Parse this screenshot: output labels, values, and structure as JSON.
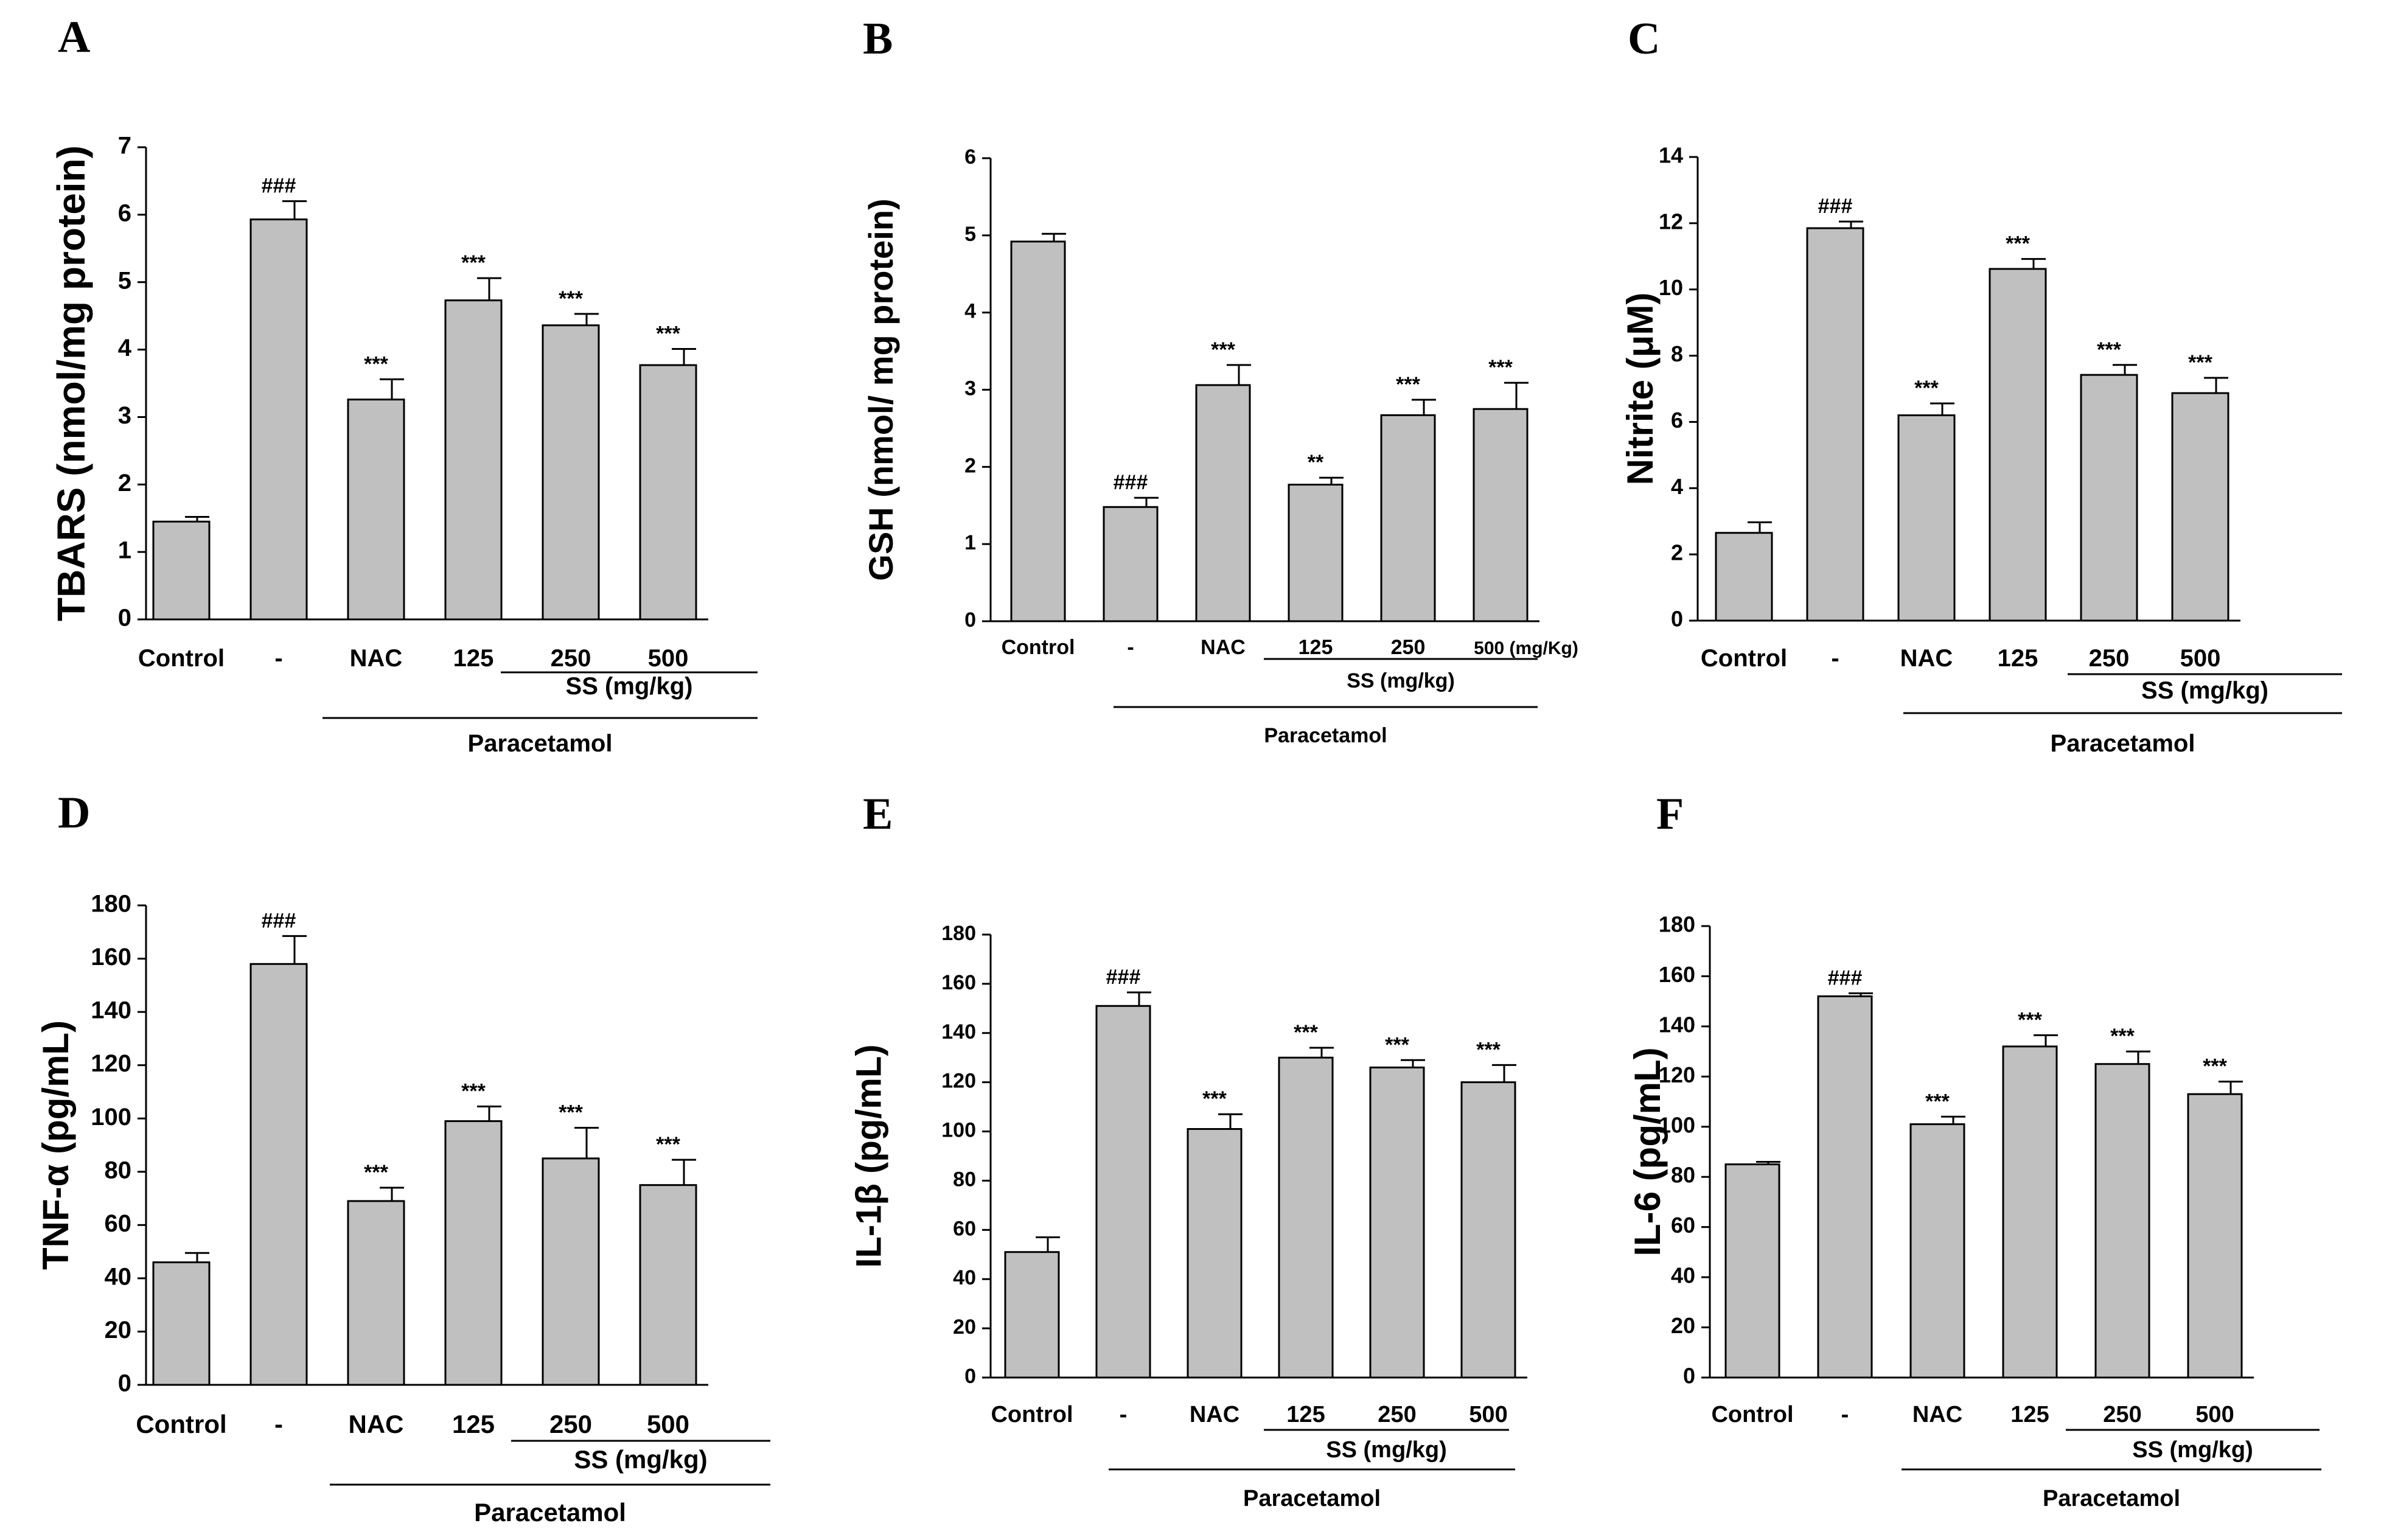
{
  "figure": {
    "shared": {
      "categories": [
        "Control",
        "-",
        "NAC",
        "125",
        "250",
        "500"
      ],
      "group_label": "SS (mg/kg)",
      "treatment_label": "Paracetamol"
    }
  },
  "chart_data": [
    {
      "panel": "A",
      "type": "bar",
      "ylabel": "TBARS (nmol/mg protein)",
      "categories": [
        "Control",
        "-",
        "NAC",
        "125",
        "250",
        "500"
      ],
      "values": [
        1.45,
        5.93,
        3.26,
        4.73,
        4.36,
        3.77
      ],
      "errors": [
        0.07,
        0.27,
        0.3,
        0.33,
        0.17,
        0.24
      ],
      "annotations": [
        "",
        "###",
        "***",
        "***",
        "***",
        "***"
      ],
      "ylim": [
        0,
        7
      ],
      "yticks": [
        0,
        1,
        2,
        3,
        4,
        5,
        6,
        7
      ],
      "group_label": "SS (mg/kg)",
      "treatment_label": "Paracetamol"
    },
    {
      "panel": "B",
      "type": "bar",
      "ylabel": "GSH (nmol/ mg protein)",
      "categories": [
        "Control",
        "-",
        "NAC",
        "125",
        "250",
        "500 (mg/Kg)"
      ],
      "values": [
        4.92,
        1.48,
        3.06,
        1.77,
        2.67,
        2.75
      ],
      "errors": [
        0.1,
        0.12,
        0.26,
        0.09,
        0.2,
        0.34
      ],
      "annotations": [
        "",
        "###",
        "***",
        "**",
        "***",
        "***"
      ],
      "ylim": [
        0,
        6
      ],
      "yticks": [
        0,
        1,
        2,
        3,
        4,
        5,
        6
      ],
      "group_label": "SS (mg/kg)",
      "treatment_label": "Paracetamol"
    },
    {
      "panel": "C",
      "type": "bar",
      "ylabel": "Nitrite (μM)",
      "categories": [
        "Control",
        "-",
        "NAC",
        "125",
        "250",
        "500"
      ],
      "values": [
        2.65,
        11.85,
        6.2,
        10.62,
        7.42,
        6.87
      ],
      "errors": [
        0.32,
        0.2,
        0.36,
        0.3,
        0.3,
        0.46
      ],
      "annotations": [
        "",
        "###",
        "***",
        "***",
        "***",
        "***"
      ],
      "ylim": [
        0,
        14
      ],
      "yticks": [
        0,
        2,
        4,
        6,
        8,
        10,
        12,
        14
      ],
      "group_label": "SS (mg/kg)",
      "treatment_label": "Paracetamol"
    },
    {
      "panel": "D",
      "type": "bar",
      "ylabel": "TNF-α (pg/mL)",
      "categories": [
        "Control",
        "-",
        "NAC",
        "125",
        "250",
        "500"
      ],
      "values": [
        46,
        158,
        69,
        99,
        85,
        75
      ],
      "errors": [
        3.5,
        10.5,
        5,
        5.5,
        11.5,
        9.5
      ],
      "annotations": [
        "",
        "###",
        "***",
        "***",
        "***",
        "***"
      ],
      "ylim": [
        0,
        180
      ],
      "yticks": [
        0,
        20,
        40,
        60,
        80,
        100,
        120,
        140,
        160,
        180
      ],
      "group_label": "SS (mg/kg)",
      "treatment_label": "Paracetamol"
    },
    {
      "panel": "E",
      "type": "bar",
      "ylabel": "IL-1β (pg/mL)",
      "categories": [
        "Control",
        "-",
        "NAC",
        "125",
        "250",
        "500"
      ],
      "values": [
        51,
        151,
        101,
        130,
        126,
        120
      ],
      "errors": [
        6,
        5.5,
        6,
        4,
        3,
        7
      ],
      "annotations": [
        "",
        "###",
        "***",
        "***",
        "***",
        "***"
      ],
      "ylim": [
        0,
        180
      ],
      "yticks": [
        0,
        20,
        40,
        60,
        80,
        100,
        120,
        140,
        160,
        180
      ],
      "group_label": "SS (mg/kg)",
      "treatment_label": "Paracetamol"
    },
    {
      "panel": "F",
      "type": "bar",
      "ylabel": "IL-6 (pg/mL)",
      "categories": [
        "Control",
        "-",
        "NAC",
        "125",
        "250",
        "500"
      ],
      "values": [
        85,
        152,
        101,
        132,
        125,
        113
      ],
      "errors": [
        1,
        1.2,
        3,
        4.5,
        5,
        5
      ],
      "annotations": [
        "",
        "###",
        "***",
        "***",
        "***",
        "***"
      ],
      "ylim": [
        0,
        180
      ],
      "yticks": [
        0,
        20,
        40,
        60,
        80,
        100,
        120,
        140,
        160,
        180
      ],
      "group_label": "SS (mg/kg)",
      "treatment_label": "Paracetamol"
    }
  ]
}
